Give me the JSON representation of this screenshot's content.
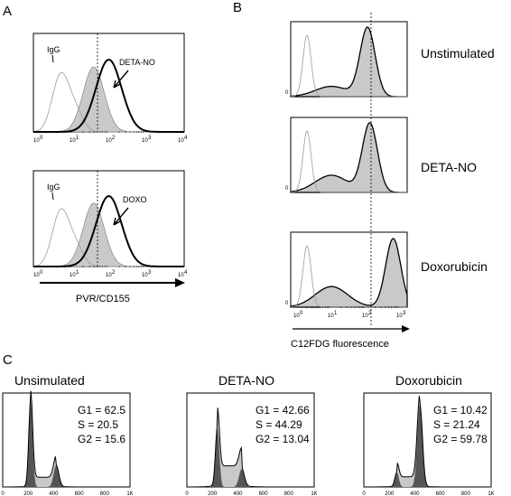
{
  "panels": {
    "A": {
      "label": "A",
      "xlabel": "PVR/CD155",
      "decade_ticks": [
        "0",
        "1",
        "2",
        "3",
        "4"
      ],
      "plots": [
        {
          "control_label": "IgG",
          "treated_label": "DETA-NO"
        },
        {
          "control_label": "IgG",
          "treated_label": "DOXO"
        }
      ]
    },
    "B": {
      "label": "B",
      "xlabel": "C12FDG fluorescence",
      "zero_tick": "0",
      "decade_ticks": [
        "0",
        "1",
        "2",
        "3"
      ],
      "conditions": [
        "Unstimulated",
        "DETA-NO",
        "Doxorubicin"
      ]
    },
    "C": {
      "label": "C",
      "x_ticks": [
        "0",
        "200",
        "400",
        "600",
        "800",
        "1K"
      ],
      "plots": [
        {
          "title": "Unsimulated",
          "g1": "G1 = 62.5",
          "s": "S   = 20.5",
          "g2": "G2 = 15.6",
          "g1_frac": 0.625,
          "s_frac": 0.205,
          "g2_frac": 0.156
        },
        {
          "title": "DETA-NO",
          "g1": "G1 = 42.66",
          "s": "S   = 44.29",
          "g2": "G2 = 13.04",
          "g1_frac": 0.4266,
          "s_frac": 0.4429,
          "g2_frac": 0.1304
        },
        {
          "title": "Doxorubicin",
          "g1": "G1 = 10.42",
          "s": "S   = 21.24",
          "g2": "G2 = 59.78",
          "g1_frac": 0.1042,
          "s_frac": 0.2124,
          "g2_frac": 0.5978
        }
      ]
    },
    "colors": {
      "shade": "#c9c9c9",
      "dark": "#555555",
      "control_line": "#9a9a9a",
      "outline": "#000000"
    }
  }
}
